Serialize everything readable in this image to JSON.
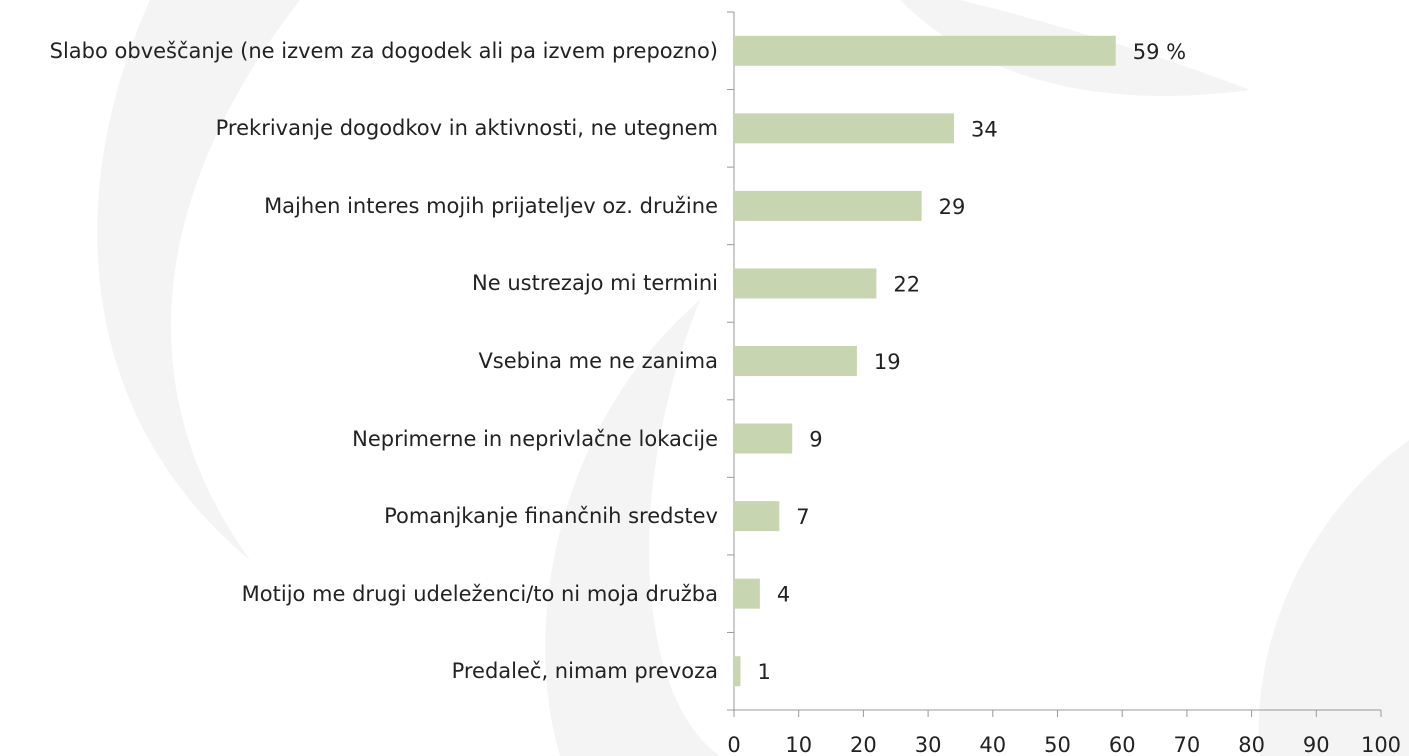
{
  "chart_data": {
    "type": "bar",
    "orientation": "horizontal",
    "categories": [
      "Slabo obveščanje (ne izvem za dogodek ali pa izvem prepozno)",
      "Prekrivanje dogodkov in aktivnosti, ne utegnem",
      "Majhen interes mojih prijateljev oz. družine",
      "Ne ustrezajo mi termini",
      "Vsebina me ne zanima",
      "Neprimerne in neprivlačne lokacije",
      "Pomanjkanje finančnih sredstev",
      "Motijo me drugi udeleženci/to ni moja družba",
      "Predaleč, nimam prevoza"
    ],
    "values": [
      59,
      34,
      29,
      22,
      19,
      9,
      7,
      4,
      1
    ],
    "value_labels": [
      "59 %",
      "34",
      "29",
      "22",
      "19",
      "9",
      "7",
      "4",
      "1"
    ],
    "color": "#c8d5b1",
    "xlim": [
      0,
      100
    ],
    "xticks": [
      0,
      10,
      20,
      30,
      40,
      50,
      60,
      70,
      80,
      90,
      100
    ]
  }
}
